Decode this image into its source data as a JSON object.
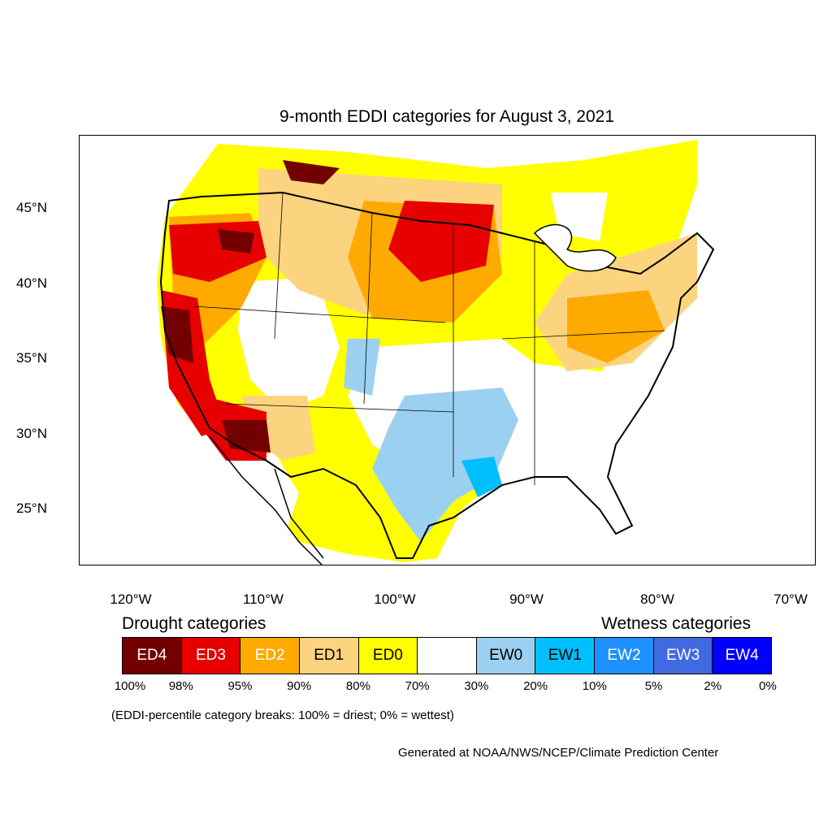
{
  "title": "9-month EDDI categories for August 3, 2021",
  "lat_labels": [
    "45°N",
    "40°N",
    "35°N",
    "30°N",
    "25°N"
  ],
  "lon_labels": [
    "120°W",
    "110°W",
    "100°W",
    "90°W",
    "80°W",
    "70°W"
  ],
  "legend": {
    "drought_heading": "Drought categories",
    "wetness_heading": "Wetness categories",
    "categories": [
      {
        "label": "ED4",
        "color": "#730000",
        "text_color": "#ffffff"
      },
      {
        "label": "ED3",
        "color": "#e60000",
        "text_color": "#ffffff"
      },
      {
        "label": "ED2",
        "color": "#ffaa00",
        "text_color": "#ffffff"
      },
      {
        "label": "ED1",
        "color": "#fcd37f",
        "text_color": "#000000"
      },
      {
        "label": "ED0",
        "color": "#ffff00",
        "text_color": "#000000"
      },
      {
        "label": "",
        "color": "#ffffff",
        "text_color": "#000000"
      },
      {
        "label": "EW0",
        "color": "#9bd0f0",
        "text_color": "#000000"
      },
      {
        "label": "EW1",
        "color": "#00bfff",
        "text_color": "#000000"
      },
      {
        "label": "EW2",
        "color": "#1e90ff",
        "text_color": "#ffffff"
      },
      {
        "label": "EW3",
        "color": "#4169e1",
        "text_color": "#ffffff"
      },
      {
        "label": "EW4",
        "color": "#0000ff",
        "text_color": "#ffffff"
      }
    ],
    "breaks": [
      "100%",
      "98%",
      "95%",
      "90%",
      "80%",
      "70%",
      "30%",
      "20%",
      "10%",
      "5%",
      "2%",
      "0%"
    ]
  },
  "note": "(EDDI-percentile category breaks: 100% = driest; 0% = wettest)",
  "credit": "Generated at NOAA/NWS/NCEP/Climate Prediction Center"
}
